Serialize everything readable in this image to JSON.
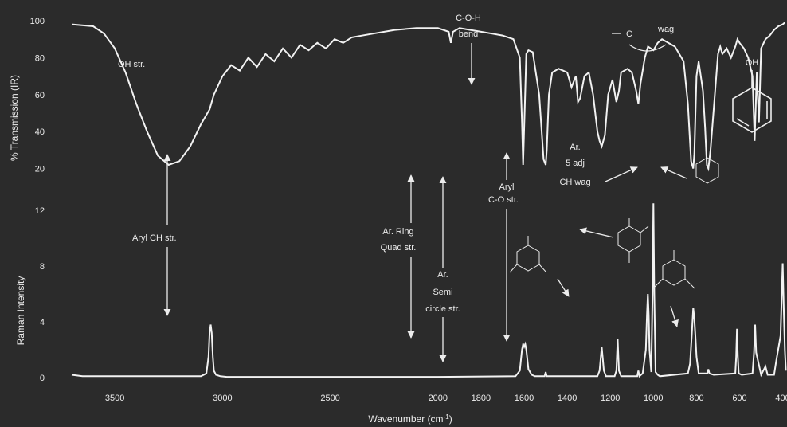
{
  "chart_data": [
    {
      "type": "line",
      "panel": "IR",
      "ylabel": "% Transmission (IR)",
      "xlabel": "Wavenumber (cm-1)",
      "xlim": [
        3700,
        380
      ],
      "ylim": [
        0,
        100
      ],
      "y_ticks": [
        "20",
        "40",
        "60",
        "80",
        "100"
      ],
      "grid": false,
      "line_color": "#f2f2f2",
      "series": [
        {
          "x": [
            3700,
            3600,
            3550,
            3500,
            3450,
            3400,
            3350,
            3300,
            3250,
            3200,
            3150,
            3100,
            3060,
            3040,
            3000,
            2960,
            2920,
            2880,
            2840,
            2800,
            2760,
            2720,
            2680,
            2640,
            2600,
            2560,
            2520,
            2480,
            2440,
            2400,
            2300,
            2200,
            2100,
            2000,
            1950,
            1940,
            1930,
            1900,
            1850,
            1800,
            1750,
            1700,
            1650,
            1620,
            1610,
            1605,
            1598,
            1590,
            1580,
            1560,
            1530,
            1510,
            1500,
            1495,
            1485,
            1470,
            1440,
            1420,
            1400,
            1380,
            1360,
            1350,
            1340,
            1320,
            1300,
            1280,
            1260,
            1250,
            1240,
            1225,
            1210,
            1190,
            1172,
            1160,
            1150,
            1120,
            1100,
            1080,
            1070,
            1060,
            1040,
            1025,
            1000,
            980,
            960,
            900,
            880,
            860,
            840,
            825,
            815,
            810,
            800,
            790,
            770,
            760,
            752,
            745,
            735,
            700,
            690,
            680,
            660,
            640,
            620,
            610,
            600,
            580,
            560,
            540,
            530,
            520,
            510,
            500,
            480,
            460,
            440,
            420,
            400,
            390
          ],
          "y": [
            98,
            97,
            93,
            85,
            72,
            55,
            40,
            27,
            22,
            24,
            32,
            44,
            52,
            60,
            70,
            76,
            73,
            80,
            75,
            82,
            78,
            85,
            80,
            87,
            84,
            88,
            85,
            90,
            88,
            91,
            93,
            95,
            96,
            96,
            94,
            88,
            94,
            96,
            95,
            94,
            93,
            92,
            90,
            80,
            45,
            22,
            50,
            82,
            84,
            83,
            60,
            25,
            22,
            30,
            60,
            72,
            74,
            73,
            72,
            64,
            70,
            56,
            58,
            70,
            72,
            60,
            40,
            35,
            32,
            38,
            60,
            68,
            56,
            62,
            72,
            74,
            72,
            62,
            55,
            66,
            80,
            86,
            84,
            88,
            90,
            86,
            82,
            78,
            55,
            24,
            20,
            28,
            70,
            78,
            62,
            42,
            22,
            20,
            30,
            82,
            86,
            82,
            85,
            80,
            86,
            90,
            88,
            85,
            80,
            70,
            35,
            72,
            45,
            85,
            90,
            92,
            95,
            97,
            98,
            99
          ]
        }
      ]
    },
    {
      "type": "line",
      "panel": "Raman",
      "ylabel": "Raman Intensity",
      "xlim": [
        3700,
        380
      ],
      "ylim": [
        0,
        13
      ],
      "y_ticks": [
        "0",
        "4",
        "8",
        "12"
      ],
      "x_ticks": [
        "3500",
        "3000",
        "2500",
        "2000",
        "1800",
        "1600",
        "1400",
        "1200",
        "1000",
        "800",
        "600",
        "400"
      ],
      "grid": false,
      "line_color": "#f2f2f2",
      "series": [
        {
          "x": [
            3700,
            3650,
            3100,
            3075,
            3065,
            3060,
            3055,
            3050,
            3045,
            3040,
            3030,
            3010,
            2980,
            2000,
            1640,
            1620,
            1610,
            1605,
            1600,
            1595,
            1590,
            1580,
            1565,
            1550,
            1505,
            1500,
            1495,
            1260,
            1250,
            1240,
            1230,
            1220,
            1180,
            1172,
            1166,
            1160,
            1150,
            1075,
            1070,
            1065,
            1050,
            1035,
            1030,
            1026,
            1022,
            1018,
            1010,
            1004,
            1000,
            996,
            990,
            980,
            970,
            840,
            830,
            822,
            815,
            810,
            805,
            800,
            790,
            750,
            745,
            740,
            720,
            620,
            616,
            612,
            608,
            604,
            590,
            540,
            533,
            528,
            523,
            500,
            480,
            470,
            440,
            430,
            410,
            400,
            395,
            390,
            385
          ],
          "y": [
            0.2,
            0.1,
            0.1,
            0.3,
            1.5,
            3.2,
            3.8,
            3.2,
            1.5,
            0.5,
            0.2,
            0.1,
            0.05,
            0.05,
            0.1,
            0.5,
            2.0,
            2.4,
            2.2,
            2.4,
            2.0,
            0.6,
            0.2,
            0.1,
            0.1,
            0.4,
            0.1,
            0.1,
            0.5,
            2.2,
            0.5,
            0.1,
            0.1,
            0.5,
            2.8,
            0.5,
            0.1,
            0.1,
            0.5,
            0.1,
            0.3,
            2.0,
            4.5,
            6.0,
            4.5,
            2.0,
            0.4,
            6.0,
            12.5,
            6.0,
            0.4,
            0.2,
            0.1,
            0.3,
            1.0,
            3.0,
            5.0,
            4.2,
            3.0,
            1.5,
            0.3,
            0.3,
            0.6,
            0.3,
            0.2,
            0.3,
            1.5,
            3.5,
            1.5,
            0.3,
            0.2,
            0.3,
            1.8,
            3.8,
            1.8,
            0.2,
            0.8,
            0.2,
            0.2,
            1.2,
            3.0,
            8.2,
            5.0,
            2.0,
            0.5
          ]
        }
      ]
    }
  ],
  "axes": {
    "xlabel_main": "Wavenumber (cm",
    "xlabel_sup": "-1",
    "xlabel_end": ")"
  },
  "annotations": {
    "oh_str": "OH str.",
    "coh_line1": "C-O-H",
    "coh_line2": "bend",
    "co_wag_left": "C",
    "co_wag_right": "wag",
    "aryl_ch_str": "Aryl CH str.",
    "ar_ring_line1": "Ar. Ring",
    "ar_ring_line2": "Quad str.",
    "ar_semi_line1": "Ar.",
    "ar_semi_line2": "Semi",
    "ar_semi_line3": "circle str.",
    "aryl_co_line1": "Aryl",
    "aryl_co_line2": "C-O str.",
    "ar5_line1": "Ar.",
    "ar5_line2": "5 adj",
    "ar5_line3": "CH wag",
    "phenol_oh": "OH"
  }
}
